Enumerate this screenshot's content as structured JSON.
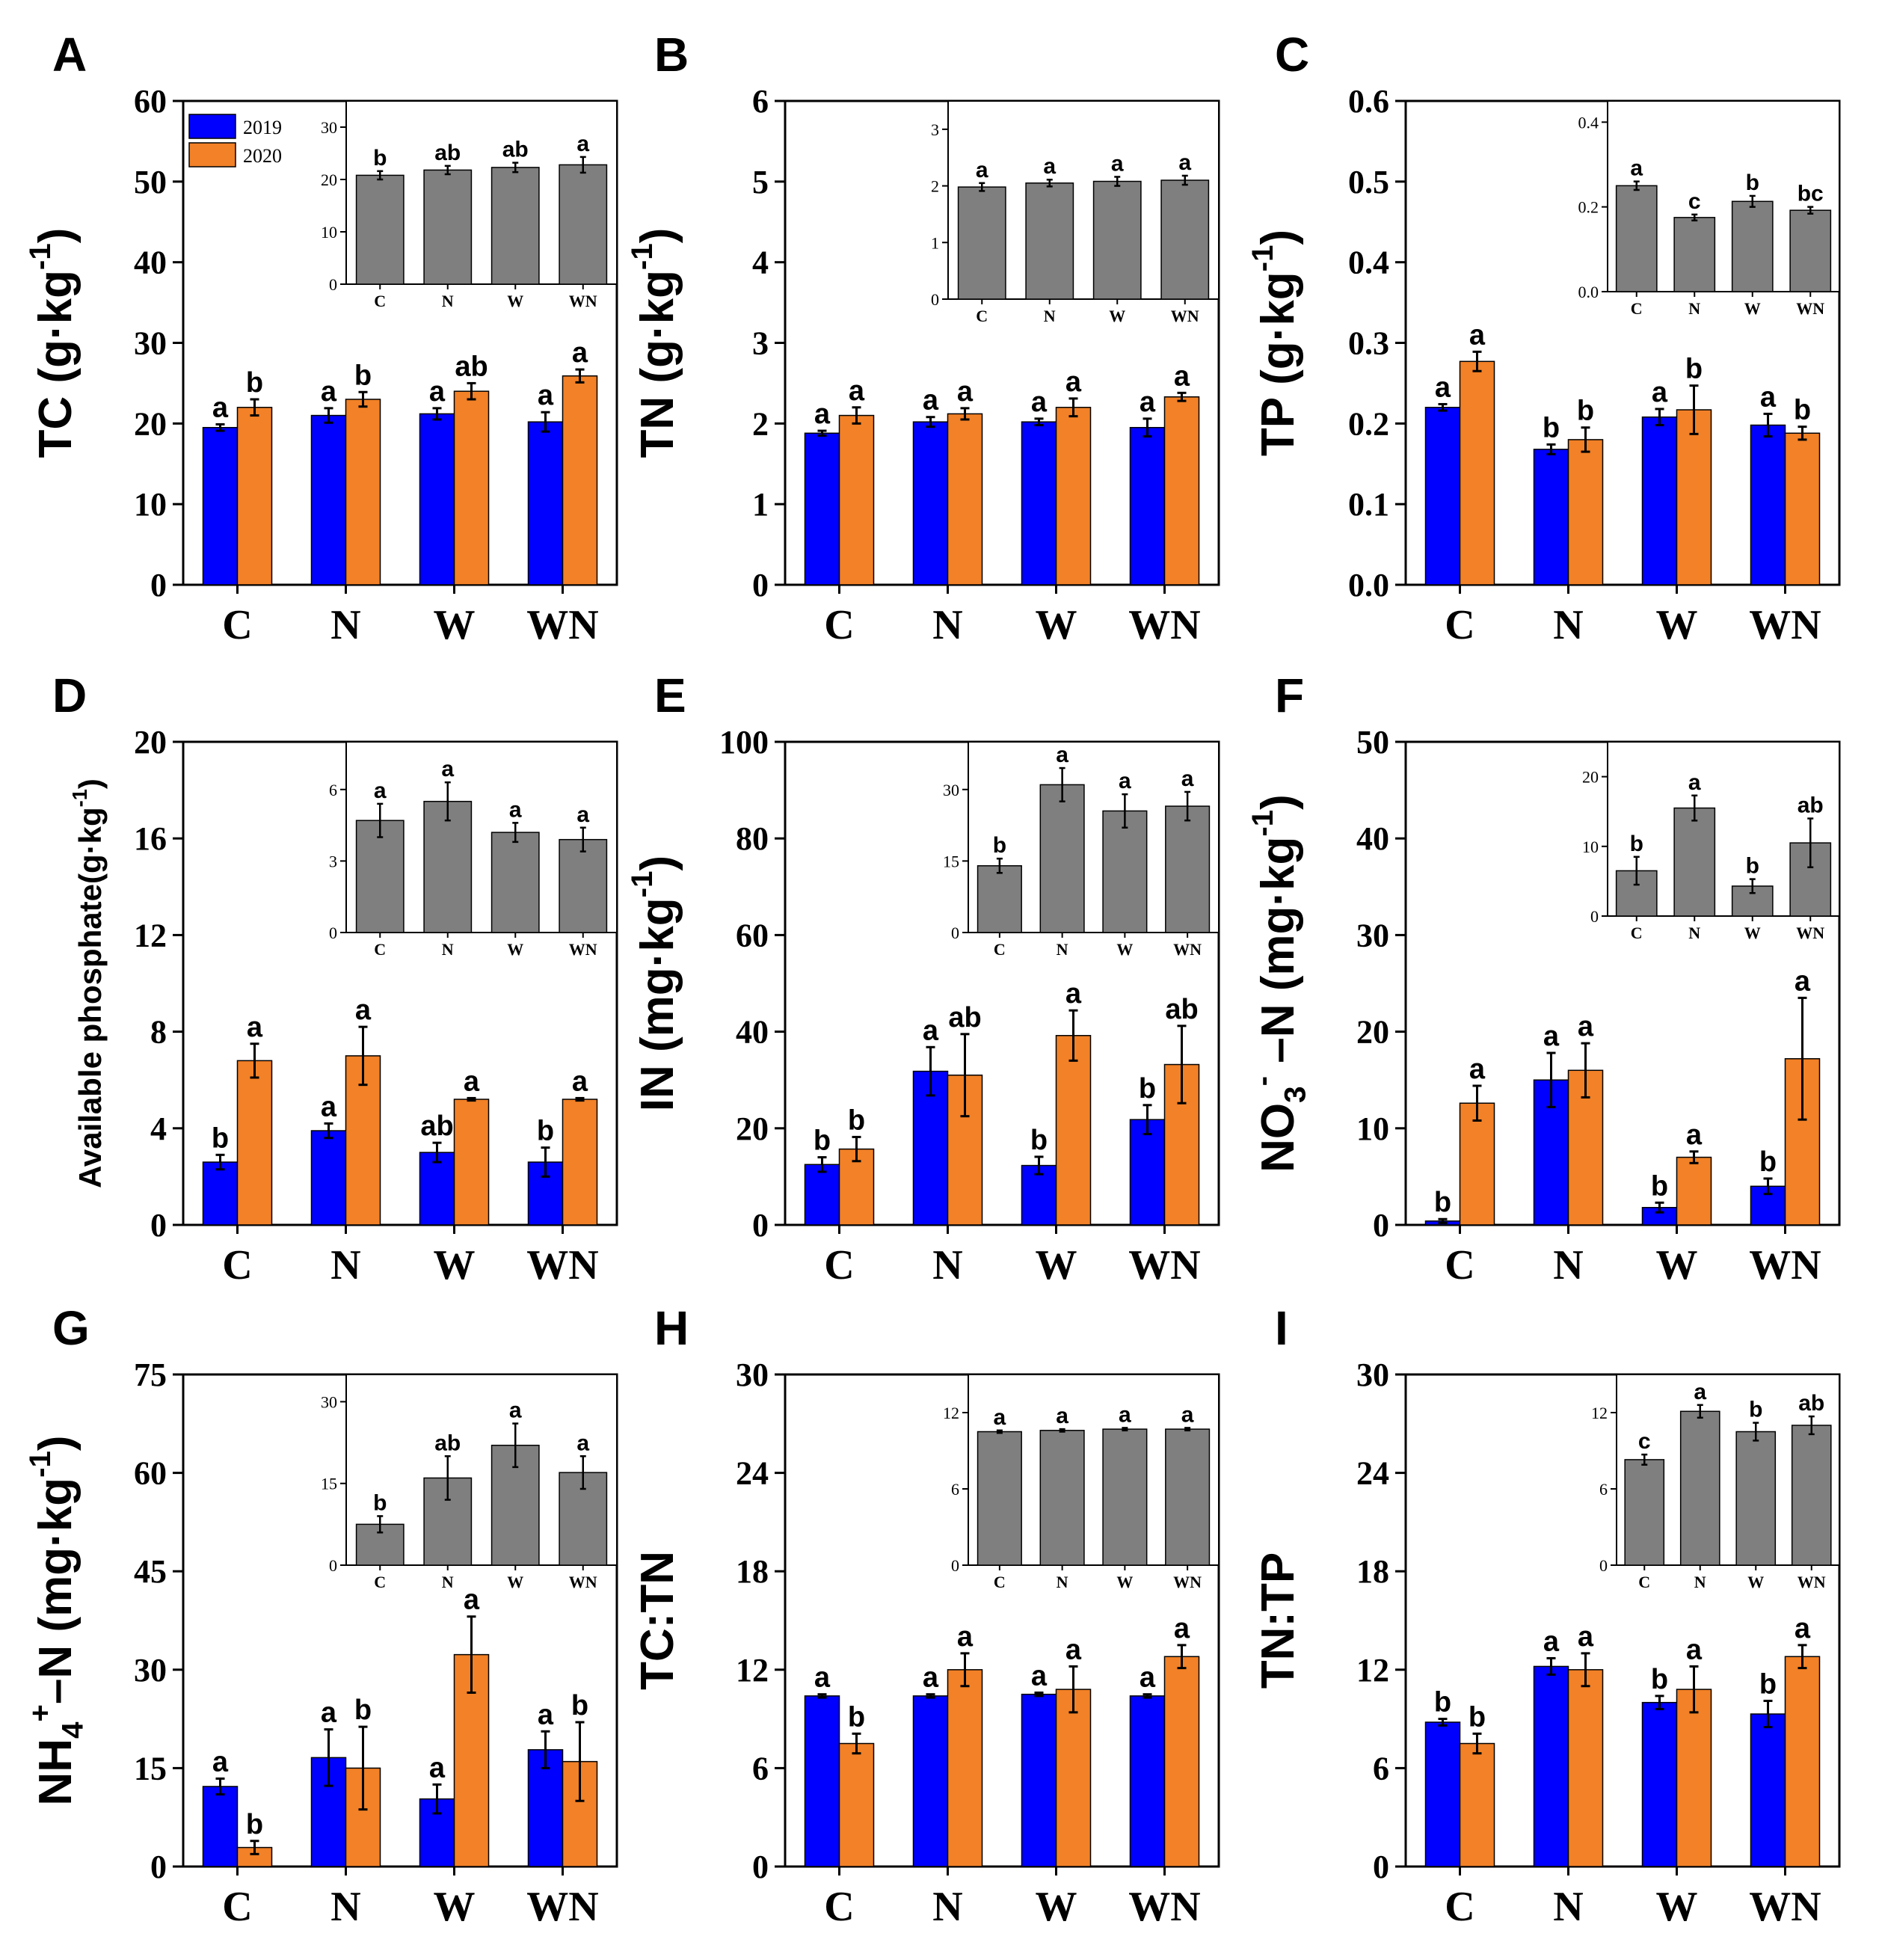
{
  "legend": {
    "series": [
      {
        "name": "2019",
        "color": "#0000FF"
      },
      {
        "name": "2020",
        "color": "#F28127"
      }
    ]
  },
  "colors": {
    "series2019": "#0000FF",
    "series2020": "#F28127",
    "inset": "#7F7F7F"
  },
  "chart_data": [
    {
      "panel": "A",
      "type": "bar",
      "ylabel": {
        "main": "TC (g·kg",
        "sup": "-1",
        "tail": ")"
      },
      "categories": [
        "C",
        "N",
        "W",
        "WN"
      ],
      "ylim": [
        0,
        60
      ],
      "yticks": [
        0,
        10,
        20,
        30,
        40,
        50,
        60
      ],
      "series": [
        {
          "name": "2019",
          "values": [
            19.5,
            21.0,
            21.2,
            20.2
          ],
          "errors": [
            0.4,
            0.9,
            0.7,
            1.2
          ],
          "labels": [
            "a",
            "a",
            "a",
            "a"
          ]
        },
        {
          "name": "2020",
          "values": [
            22.0,
            23.0,
            24.0,
            25.9
          ],
          "errors": [
            1.0,
            0.9,
            1.0,
            0.8
          ],
          "labels": [
            "b",
            "b",
            "ab",
            "a"
          ]
        }
      ],
      "inset": {
        "ylim": [
          0,
          35
        ],
        "yticks": [
          0,
          10,
          20,
          30
        ],
        "values": [
          20.8,
          21.8,
          22.3,
          22.8
        ],
        "errors": [
          0.8,
          0.8,
          0.9,
          1.5
        ],
        "labels": [
          "b",
          "ab",
          "ab",
          "a"
        ]
      }
    },
    {
      "panel": "B",
      "type": "bar",
      "ylabel": {
        "main": "TN (g·kg",
        "sup": "-1",
        "tail": ")"
      },
      "categories": [
        "C",
        "N",
        "W",
        "WN"
      ],
      "ylim": [
        0,
        6
      ],
      "yticks": [
        0,
        1,
        2,
        3,
        4,
        5,
        6
      ],
      "series": [
        {
          "name": "2019",
          "values": [
            1.88,
            2.02,
            2.02,
            1.95
          ],
          "errors": [
            0.03,
            0.06,
            0.04,
            0.11
          ],
          "labels": [
            "a",
            "a",
            "a",
            "a"
          ]
        },
        {
          "name": "2020",
          "values": [
            2.1,
            2.12,
            2.2,
            2.33
          ],
          "errors": [
            0.1,
            0.07,
            0.11,
            0.05
          ],
          "labels": [
            "a",
            "a",
            "a",
            "a"
          ]
        }
      ],
      "inset": {
        "ylim": [
          0,
          3.5
        ],
        "yticks": [
          0,
          1,
          2,
          3
        ],
        "values": [
          1.98,
          2.05,
          2.08,
          2.1
        ],
        "errors": [
          0.07,
          0.06,
          0.08,
          0.08
        ],
        "labels": [
          "a",
          "a",
          "a",
          "a"
        ]
      }
    },
    {
      "panel": "C",
      "type": "bar",
      "ylabel": {
        "main": "TP (g·kg",
        "sup": "-1",
        "tail": ")"
      },
      "categories": [
        "C",
        "N",
        "W",
        "WN"
      ],
      "ylim": [
        0,
        0.6
      ],
      "yticks": [
        0.0,
        0.1,
        0.2,
        0.3,
        0.4,
        0.5,
        0.6
      ],
      "ytick_decimals": 1,
      "series": [
        {
          "name": "2019",
          "values": [
            0.22,
            0.168,
            0.208,
            0.198
          ],
          "errors": [
            0.004,
            0.006,
            0.01,
            0.014
          ],
          "labels": [
            "a",
            "b",
            "a",
            "a"
          ]
        },
        {
          "name": "2020",
          "values": [
            0.277,
            0.18,
            0.217,
            0.188
          ],
          "errors": [
            0.012,
            0.015,
            0.03,
            0.008
          ],
          "labels": [
            "a",
            "b",
            "b",
            "b"
          ]
        }
      ],
      "inset": {
        "ylim": [
          0,
          0.45
        ],
        "yticks": [
          0.0,
          0.2,
          0.4
        ],
        "ytick_decimals": 1,
        "values": [
          0.25,
          0.175,
          0.213,
          0.192
        ],
        "errors": [
          0.01,
          0.007,
          0.013,
          0.008
        ],
        "labels": [
          "a",
          "c",
          "b",
          "bc"
        ]
      }
    },
    {
      "panel": "D",
      "type": "bar",
      "ylabel": {
        "main": "Available phosphate(g·kg",
        "sup": "-1",
        "tail": ")"
      },
      "categories": [
        "C",
        "N",
        "W",
        "WN"
      ],
      "ylim": [
        0,
        20
      ],
      "yticks": [
        0,
        4,
        8,
        12,
        16,
        20
      ],
      "series": [
        {
          "name": "2019",
          "values": [
            2.6,
            3.9,
            3.0,
            2.6
          ],
          "errors": [
            0.3,
            0.3,
            0.4,
            0.6
          ],
          "labels": [
            "b",
            "a",
            "ab",
            "b"
          ]
        },
        {
          "name": "2020",
          "values": [
            6.8,
            7.0,
            5.2,
            5.2
          ],
          "errors": [
            0.7,
            1.2,
            0.05,
            0.05
          ],
          "labels": [
            "a",
            "a",
            "a",
            "a"
          ]
        }
      ],
      "inset": {
        "ylim": [
          0,
          8
        ],
        "yticks": [
          0,
          3,
          6
        ],
        "values": [
          4.7,
          5.5,
          4.2,
          3.9
        ],
        "errors": [
          0.7,
          0.8,
          0.4,
          0.5
        ],
        "labels": [
          "a",
          "a",
          "a",
          "a"
        ]
      }
    },
    {
      "panel": "E",
      "type": "bar",
      "ylabel": {
        "main": "IN (mg·kg",
        "sup": "-1",
        "tail": ")"
      },
      "categories": [
        "C",
        "N",
        "W",
        "WN"
      ],
      "ylim": [
        0,
        100
      ],
      "yticks": [
        0,
        20,
        40,
        60,
        80,
        100
      ],
      "series": [
        {
          "name": "2019",
          "values": [
            12.5,
            31.8,
            12.3,
            21.8
          ],
          "errors": [
            1.5,
            5.0,
            1.8,
            3.0
          ],
          "labels": [
            "b",
            "a",
            "b",
            "b"
          ]
        },
        {
          "name": "2020",
          "values": [
            15.7,
            31.0,
            39.2,
            33.2
          ],
          "errors": [
            2.5,
            8.5,
            5.2,
            8.0
          ],
          "labels": [
            "b",
            "ab",
            "a",
            "ab"
          ]
        }
      ],
      "inset": {
        "ylim": [
          0,
          40
        ],
        "yticks": [
          0,
          15,
          30
        ],
        "values": [
          14.0,
          31.0,
          25.5,
          26.5
        ],
        "errors": [
          1.5,
          3.5,
          3.5,
          3.0
        ],
        "labels": [
          "b",
          "a",
          "a",
          "a"
        ]
      }
    },
    {
      "panel": "F",
      "type": "bar",
      "ylabel": {
        "main": "NO",
        "sub": "3",
        "sup": "-",
        "tail": " –N (mg·kg",
        "sup2": "-1",
        "tail2": ")"
      },
      "categories": [
        "C",
        "N",
        "W",
        "WN"
      ],
      "ylim": [
        0,
        50
      ],
      "yticks": [
        0,
        10,
        20,
        30,
        40,
        50
      ],
      "series": [
        {
          "name": "2019",
          "values": [
            0.4,
            15.0,
            1.8,
            4.0
          ],
          "errors": [
            0.2,
            2.8,
            0.5,
            0.8
          ],
          "labels": [
            "b",
            "a",
            "b",
            "b"
          ]
        },
        {
          "name": "2020",
          "values": [
            12.6,
            16.0,
            7.0,
            17.2
          ],
          "errors": [
            1.8,
            2.8,
            0.6,
            6.3
          ],
          "labels": [
            "a",
            "a",
            "a",
            "a"
          ]
        }
      ],
      "inset": {
        "ylim": [
          0,
          25
        ],
        "yticks": [
          0,
          10,
          20
        ],
        "values": [
          6.5,
          15.5,
          4.3,
          10.5
        ],
        "errors": [
          2.0,
          1.8,
          1.0,
          3.5
        ],
        "labels": [
          "b",
          "a",
          "b",
          "ab"
        ]
      }
    },
    {
      "panel": "G",
      "type": "bar",
      "ylabel": {
        "main": "NH",
        "sub": "4",
        "sup": "+",
        "tail": "–N (mg·kg",
        "sup2": "-1",
        "tail2": ")"
      },
      "categories": [
        "C",
        "N",
        "W",
        "WN"
      ],
      "ylim": [
        0,
        75
      ],
      "yticks": [
        0,
        15,
        30,
        45,
        60,
        75
      ],
      "series": [
        {
          "name": "2019",
          "values": [
            12.2,
            16.6,
            10.3,
            17.8
          ],
          "errors": [
            1.2,
            4.3,
            2.2,
            2.8
          ],
          "labels": [
            "a",
            "a",
            "a",
            "a"
          ]
        },
        {
          "name": "2020",
          "values": [
            2.9,
            15.0,
            32.3,
            16.0
          ],
          "errors": [
            1.0,
            6.3,
            5.8,
            6.0
          ],
          "labels": [
            "b",
            "b",
            "a",
            "b"
          ]
        }
      ],
      "inset": {
        "ylim": [
          0,
          35
        ],
        "yticks": [
          0,
          15,
          30
        ],
        "values": [
          7.5,
          16.0,
          22.0,
          17.0
        ],
        "errors": [
          1.5,
          4.0,
          4.0,
          3.0
        ],
        "labels": [
          "b",
          "ab",
          "a",
          "a"
        ]
      }
    },
    {
      "panel": "H",
      "type": "bar",
      "ylabel": {
        "main": "TC:TN"
      },
      "categories": [
        "C",
        "N",
        "W",
        "WN"
      ],
      "ylim": [
        0,
        30
      ],
      "yticks": [
        0,
        6,
        12,
        18,
        24,
        30
      ],
      "series": [
        {
          "name": "2019",
          "values": [
            10.4,
            10.4,
            10.5,
            10.4
          ],
          "errors": [
            0.1,
            0.1,
            0.1,
            0.1
          ],
          "labels": [
            "a",
            "a",
            "a",
            "a"
          ]
        },
        {
          "name": "2020",
          "values": [
            7.5,
            12.0,
            10.8,
            12.8
          ],
          "errors": [
            0.6,
            1.0,
            1.4,
            0.7
          ],
          "labels": [
            "b",
            "a",
            "a",
            "a"
          ]
        }
      ],
      "inset": {
        "ylim": [
          0,
          15
        ],
        "yticks": [
          0,
          6,
          12
        ],
        "values": [
          10.5,
          10.6,
          10.7,
          10.7
        ],
        "errors": [
          0.1,
          0.1,
          0.1,
          0.1
        ],
        "labels": [
          "a",
          "a",
          "a",
          "a"
        ]
      }
    },
    {
      "panel": "I",
      "type": "bar",
      "ylabel": {
        "main": "TN:TP"
      },
      "categories": [
        "C",
        "N",
        "W",
        "WN"
      ],
      "ylim": [
        0,
        30
      ],
      "yticks": [
        0,
        6,
        12,
        18,
        24,
        30
      ],
      "series": [
        {
          "name": "2019",
          "values": [
            8.8,
            12.2,
            10.0,
            9.3
          ],
          "errors": [
            0.2,
            0.5,
            0.4,
            0.8
          ],
          "labels": [
            "b",
            "a",
            "b",
            "b"
          ]
        },
        {
          "name": "2020",
          "values": [
            7.5,
            12.0,
            10.8,
            12.8
          ],
          "errors": [
            0.6,
            1.0,
            1.4,
            0.7
          ],
          "labels": [
            "b",
            "a",
            "a",
            "a"
          ]
        }
      ],
      "inset": {
        "ylim": [
          0,
          15
        ],
        "yticks": [
          0,
          6,
          12
        ],
        "values": [
          8.3,
          12.1,
          10.5,
          11.0
        ],
        "errors": [
          0.4,
          0.5,
          0.7,
          0.7
        ],
        "labels": [
          "c",
          "a",
          "b",
          "ab"
        ]
      }
    }
  ]
}
